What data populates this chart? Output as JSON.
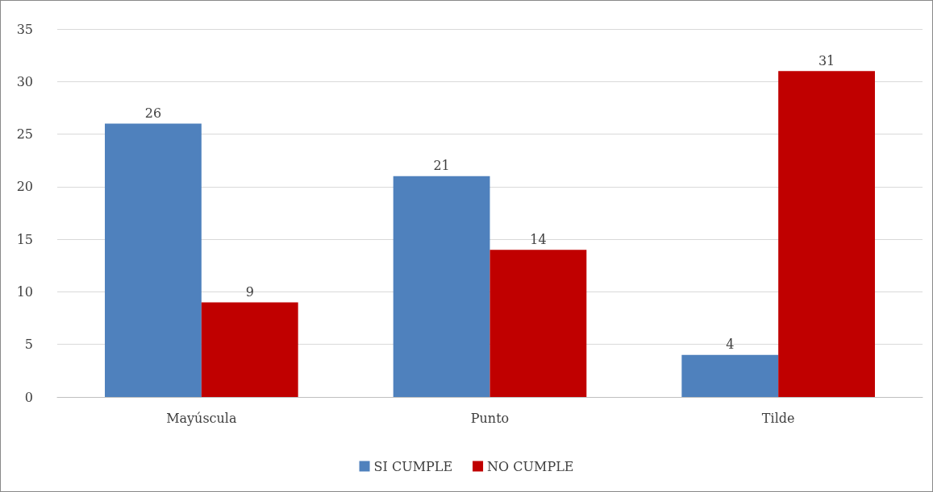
{
  "chart_data": {
    "type": "bar",
    "categories": [
      "Mayúscula",
      "Punto",
      "Tilde"
    ],
    "series": [
      {
        "name": "SI CUMPLE",
        "color": "#4f81bd",
        "values": [
          26,
          21,
          4
        ]
      },
      {
        "name": "NO CUMPLE",
        "color": "#c00000",
        "values": [
          9,
          14,
          31
        ]
      }
    ],
    "ylim": [
      0,
      35
    ],
    "yticks": [
      0,
      5,
      10,
      15,
      20,
      25,
      30,
      35
    ],
    "grid": "y",
    "legend": "bottom",
    "data_labels": true
  }
}
